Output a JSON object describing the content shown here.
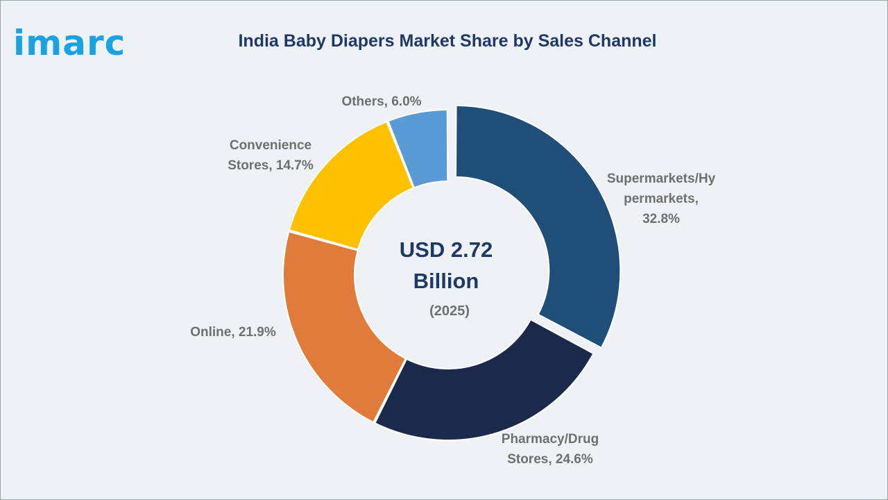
{
  "logo": {
    "text": "imarc",
    "color": "#1aa3e0"
  },
  "header": {
    "title": "India Baby Diapers Market Share by Sales Channel"
  },
  "center": {
    "value_line1": "USD 2.72",
    "value_line2": "Billion",
    "year": "(2025)"
  },
  "chart_data": {
    "type": "pie",
    "style": "donut",
    "title": "India Baby Diapers Market Share by Sales Channel",
    "slices": [
      {
        "label": "Supermarkets/Hypermarkets",
        "value": 32.8,
        "display": [
          "Supermarkets/Hy",
          "permarkets,",
          "32.8%"
        ],
        "color": "#1f4e79",
        "exploded": true
      },
      {
        "label": "Pharmacy/Drug Stores",
        "value": 24.6,
        "display": [
          "Pharmacy/Drug",
          "Stores, 24.6%"
        ],
        "color": "#1b2a4a",
        "exploded": false
      },
      {
        "label": "Online",
        "value": 21.9,
        "display": [
          "Online, 21.9%"
        ],
        "color": "#e07b39",
        "exploded": false
      },
      {
        "label": "Convenience Stores",
        "value": 14.7,
        "display": [
          "Convenience",
          "Stores, 14.7%"
        ],
        "color": "#ffc000",
        "exploded": false
      },
      {
        "label": "Others",
        "value": 6.0,
        "display": [
          "Others, 6.0%"
        ],
        "color": "#5b9bd5",
        "exploded": false
      }
    ],
    "center_value": "USD 2.72 Billion",
    "center_year": "(2025)"
  }
}
